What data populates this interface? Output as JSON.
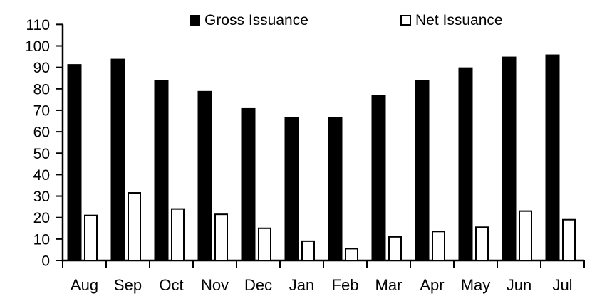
{
  "legend": {
    "items": [
      {
        "label": "Gross Issuance",
        "swatch": "filled-black-square"
      },
      {
        "label": "Net Issuance",
        "swatch": "outlined-white-square"
      }
    ]
  },
  "colors": {
    "gross_bar": "#000000",
    "net_bar_fill": "#ffffff",
    "net_bar_outline": "#000000",
    "axis": "#000000",
    "background": "#ffffff"
  },
  "axes": {
    "y_tick_labels": [
      "0",
      "10",
      "20",
      "30",
      "40",
      "50",
      "60",
      "70",
      "80",
      "90",
      "100",
      "110"
    ],
    "x_tick_labels": [
      "Aug",
      "Sep",
      "Oct",
      "Nov",
      "Dec",
      "Jan",
      "Feb",
      "Mar",
      "Apr",
      "May",
      "Jun",
      "Jul"
    ]
  },
  "chart_data": {
    "type": "bar",
    "title": "",
    "xlabel": "",
    "ylabel": "",
    "categories": [
      "Aug",
      "Sep",
      "Oct",
      "Nov",
      "Dec",
      "Jan",
      "Feb",
      "Mar",
      "Apr",
      "May",
      "Jun",
      "Jul"
    ],
    "series": [
      {
        "name": "Gross Issuance",
        "style": "filled",
        "color": "#000000",
        "values": [
          91.5,
          94,
          84,
          79,
          71,
          67,
          67,
          77,
          84,
          90,
          95,
          96
        ]
      },
      {
        "name": "Net Issuance",
        "style": "outlined",
        "color": "#ffffff",
        "values": [
          21,
          31.5,
          24,
          21.5,
          15,
          9,
          5.5,
          11,
          13.5,
          15.5,
          23,
          19
        ]
      }
    ],
    "ylim": [
      0,
      110
    ],
    "ytick_step": 10,
    "grid": false,
    "legend_position": "top-center"
  }
}
